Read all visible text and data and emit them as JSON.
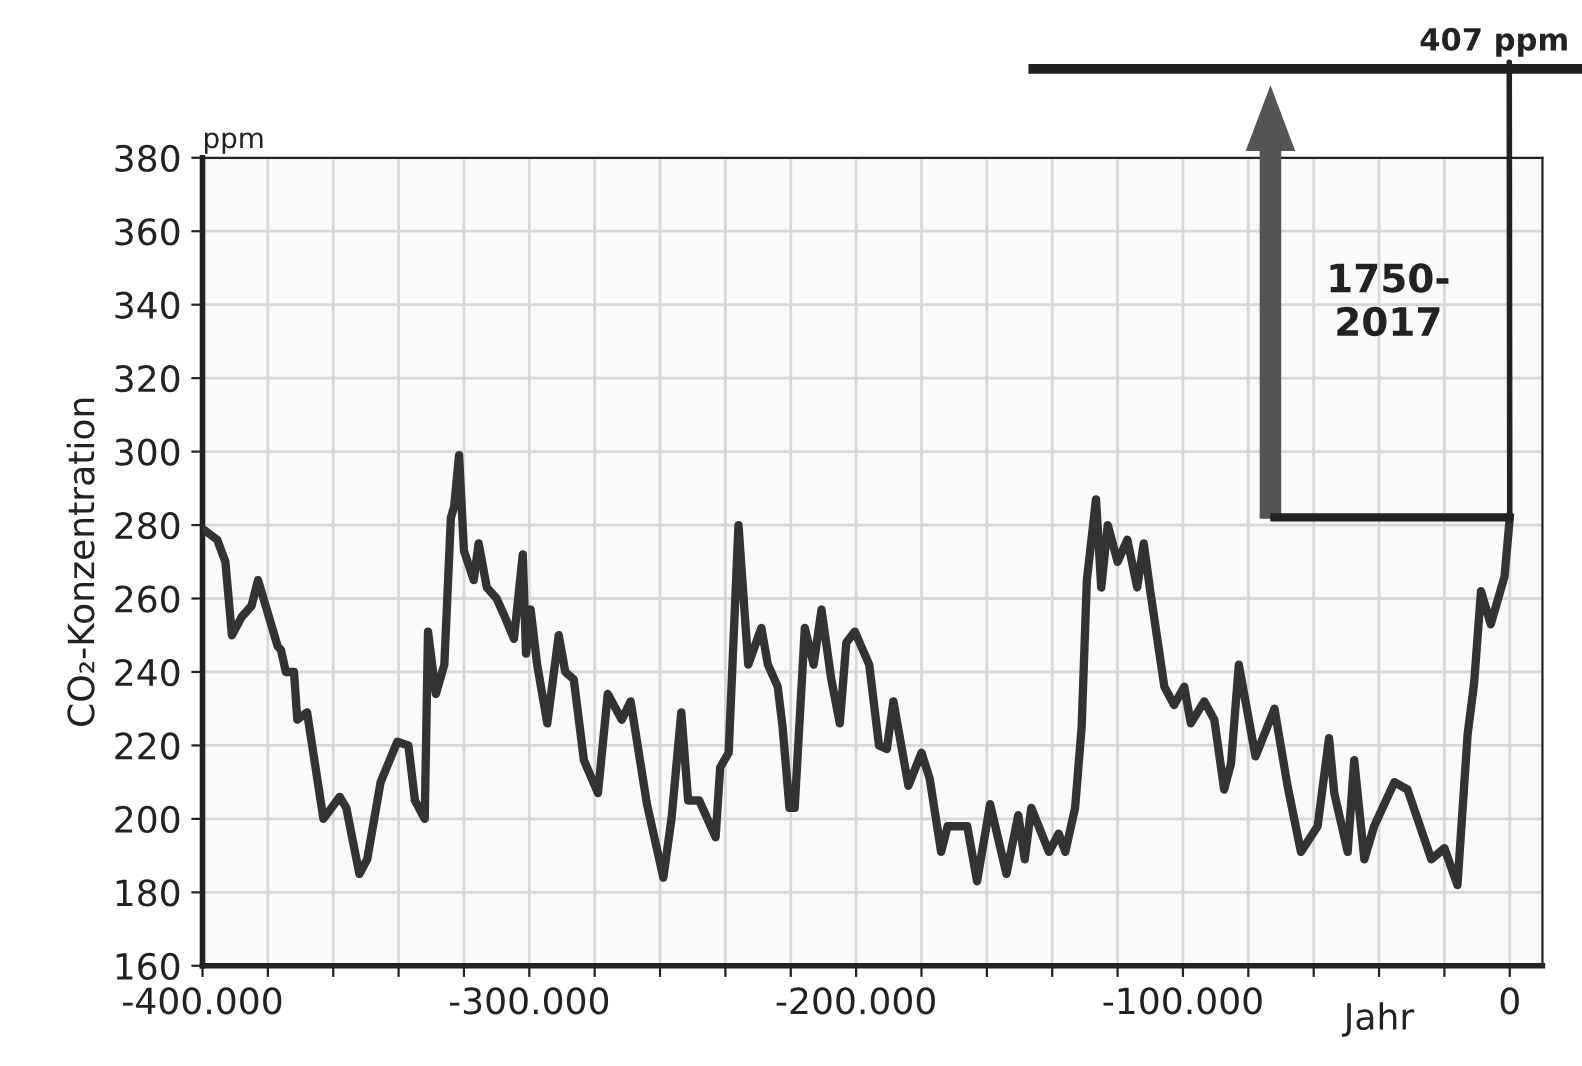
{
  "chart_data": {
    "type": "line",
    "ylabel": "CO₂-Konzentration",
    "xlabel": "Jahr",
    "annotations": [
      "ppm",
      {
        "text": "407 ppm",
        "x": 0,
        "y": 282
      },
      "1750-\n2017"
    ],
    "x": [
      -400000,
      -395500,
      -393000,
      -391000,
      -388000,
      -385000,
      -383000,
      -380000,
      -377000,
      -376000,
      -374500,
      -372000,
      -371000,
      -368000,
      -363000,
      -358000,
      -356000,
      -352000,
      -349600,
      -345500,
      -340400,
      -337000,
      -335000,
      -332000,
      -331000,
      -328600,
      -326000,
      -324000,
      -323000,
      -321500,
      -320000,
      -317000,
      -315500,
      -313000,
      -310000,
      -307000,
      -304700,
      -302000,
      -301000,
      -299600,
      -297600,
      -294500,
      -291000,
      -289000,
      -286400,
      -283300,
      -279000,
      -276000,
      -271700,
      -269000,
      -264000,
      -261500,
      -259000,
      -256500,
      -253500,
      -251400,
      -248000,
      -243000,
      -241600,
      -239000,
      -236000,
      -233000,
      -229000,
      -227000,
      -224000,
      -222500,
      -220400,
      -218800,
      -215700,
      -213000,
      -210600,
      -207600,
      -205000,
      -203000,
      -200400,
      -196000,
      -193000,
      -190600,
      -188600,
      -186000,
      -184000,
      -180000,
      -177500,
      -174000,
      -172000,
      -166000,
      -163000,
      -159000,
      -154000,
      -150400,
      -148400,
      -146400,
      -141000,
      -138000,
      -136000,
      -133000,
      -131000,
      -129400,
      -126600,
      -125000,
      -123000,
      -120000,
      -117000,
      -114000,
      -112000,
      -110000,
      -105700,
      -102700,
      -99600,
      -97600,
      -93500,
      -90400,
      -87400,
      -85300,
      -82900,
      -77800,
      -72000,
      -68000,
      -63900,
      -58800,
      -55300,
      -53700,
      -49600,
      -47600,
      -44500,
      -41500,
      -35300,
      -31300,
      -24000,
      -20000,
      -16000,
      -12900,
      -10900,
      -8800,
      -5800,
      -1600,
      0
    ],
    "series": [
      {
        "color": "#333333",
        "values": [
          279,
          276,
          270,
          250,
          255,
          258,
          265,
          256,
          247,
          246,
          240,
          240,
          227,
          229,
          200,
          206,
          203,
          185,
          189,
          210,
          221,
          220,
          205,
          200,
          251,
          234,
          242,
          282,
          285,
          299,
          273,
          265,
          275,
          263,
          260,
          254,
          249,
          272,
          245,
          257,
          242,
          226,
          250,
          240,
          238,
          216,
          207,
          234,
          227,
          232,
          204,
          194,
          184,
          200,
          229,
          205,
          205,
          195,
          214,
          218,
          280,
          242,
          252,
          242,
          236,
          225,
          203,
          203,
          252,
          242,
          257,
          238,
          226,
          248,
          251,
          242,
          220,
          219,
          232,
          219,
          209,
          218,
          211,
          191,
          198,
          198,
          183,
          204,
          185,
          201,
          189,
          203,
          191,
          196,
          191,
          203,
          225,
          265,
          287,
          263,
          280,
          270,
          276,
          263,
          275,
          262,
          236,
          231,
          236,
          226,
          232,
          227,
          208,
          215,
          242,
          217,
          230,
          209,
          191,
          198,
          222,
          207,
          191,
          216,
          189,
          198,
          210,
          208,
          189,
          192,
          182,
          223,
          237,
          262,
          253,
          266,
          282
        ]
      }
    ],
    "xlim": [
      -400000,
      10000
    ],
    "xticks": [
      {
        "value": -400000,
        "label": "-400.000"
      },
      {
        "value": -380000,
        "label": null
      },
      {
        "value": -360000,
        "label": null
      },
      {
        "value": -340000,
        "label": null
      },
      {
        "value": -320000,
        "label": null
      },
      {
        "value": -300000,
        "label": "-300.000"
      },
      {
        "value": -280000,
        "label": null
      },
      {
        "value": -260000,
        "label": null
      },
      {
        "value": -240000,
        "label": null
      },
      {
        "value": -220000,
        "label": null
      },
      {
        "value": -200000,
        "label": "-200.000"
      },
      {
        "value": -180000,
        "label": null
      },
      {
        "value": -160000,
        "label": null
      },
      {
        "value": -140000,
        "label": null
      },
      {
        "value": -120000,
        "label": null
      },
      {
        "value": -100000,
        "label": "-100.000"
      },
      {
        "value": -80000,
        "label": null
      },
      {
        "value": -60000,
        "label": null
      },
      {
        "value": -40000,
        "label": null
      },
      {
        "value": -20000,
        "label": null
      },
      0
    ],
    "ylim": [
      160,
      380
    ],
    "yticks": [
      160,
      180,
      200,
      220,
      240,
      260,
      280,
      300,
      320,
      340,
      360,
      380
    ],
    "grid": true,
    "legend": false,
    "marker": "none",
    "line_style": "solid"
  }
}
